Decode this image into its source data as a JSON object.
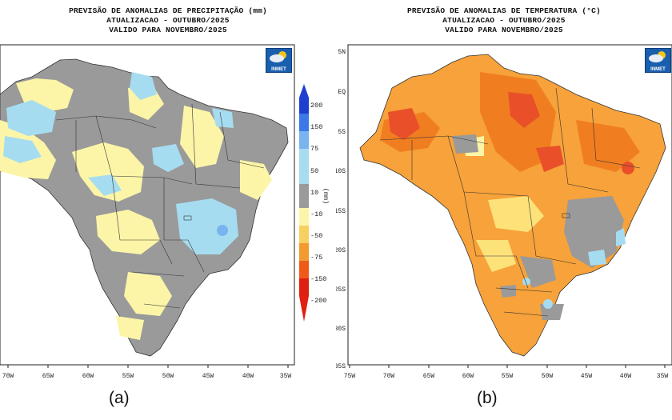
{
  "panel_a": {
    "title_lines": [
      "PREVISÃO DE ANOMALIAS DE PRECIPITAÇÃO (mm)",
      "ATUALIZACAO - OUTUBRO/2025",
      "VALIDO PARA NOVEMBRO/2025"
    ],
    "logo_text": "INMET",
    "caption": "(a)",
    "lon_ticks": [
      "70W",
      "65W",
      "60W",
      "55W",
      "50W",
      "45W",
      "40W",
      "35W"
    ],
    "colorbar": {
      "unit": "(mm)",
      "labels": [
        "200",
        "150",
        "75",
        "50",
        "10",
        "-10",
        "-50",
        "-75",
        "-150",
        "-200"
      ],
      "colors": [
        "#1f3fd0",
        "#3c78e6",
        "#7ab4f0",
        "#a6dcf0",
        "#9a9a9a",
        "#fcf5a8",
        "#f8d060",
        "#f09a30",
        "#ee5a1a",
        "#e02010"
      ]
    }
  },
  "panel_b": {
    "title_lines": [
      "PREVISÃO DE ANOMALIAS DE TEMPERATURA (°C)",
      "ATUALIZACAO - OUTUBRO/2025",
      "VALIDO PARA NOVEMBRO/2025"
    ],
    "logo_text": "INMET",
    "caption": "(b)",
    "lon_ticks": [
      "75W",
      "70W",
      "65W",
      "60W",
      "55W",
      "50W",
      "45W",
      "40W",
      "35W"
    ],
    "lat_ticks": [
      "5N",
      "EQ",
      "5S",
      "10S",
      "15S",
      "20S",
      "25S",
      "30S",
      "35S"
    ]
  },
  "colors": {
    "gray": "#999999",
    "pale_yellow": "#fcf5a8",
    "light_blue": "#a6dcf0",
    "blue": "#7ab4f0",
    "orange": "#f7a23a",
    "dark_orange": "#f07e20",
    "red_orange": "#e9502a",
    "yellow": "#fde27a"
  }
}
